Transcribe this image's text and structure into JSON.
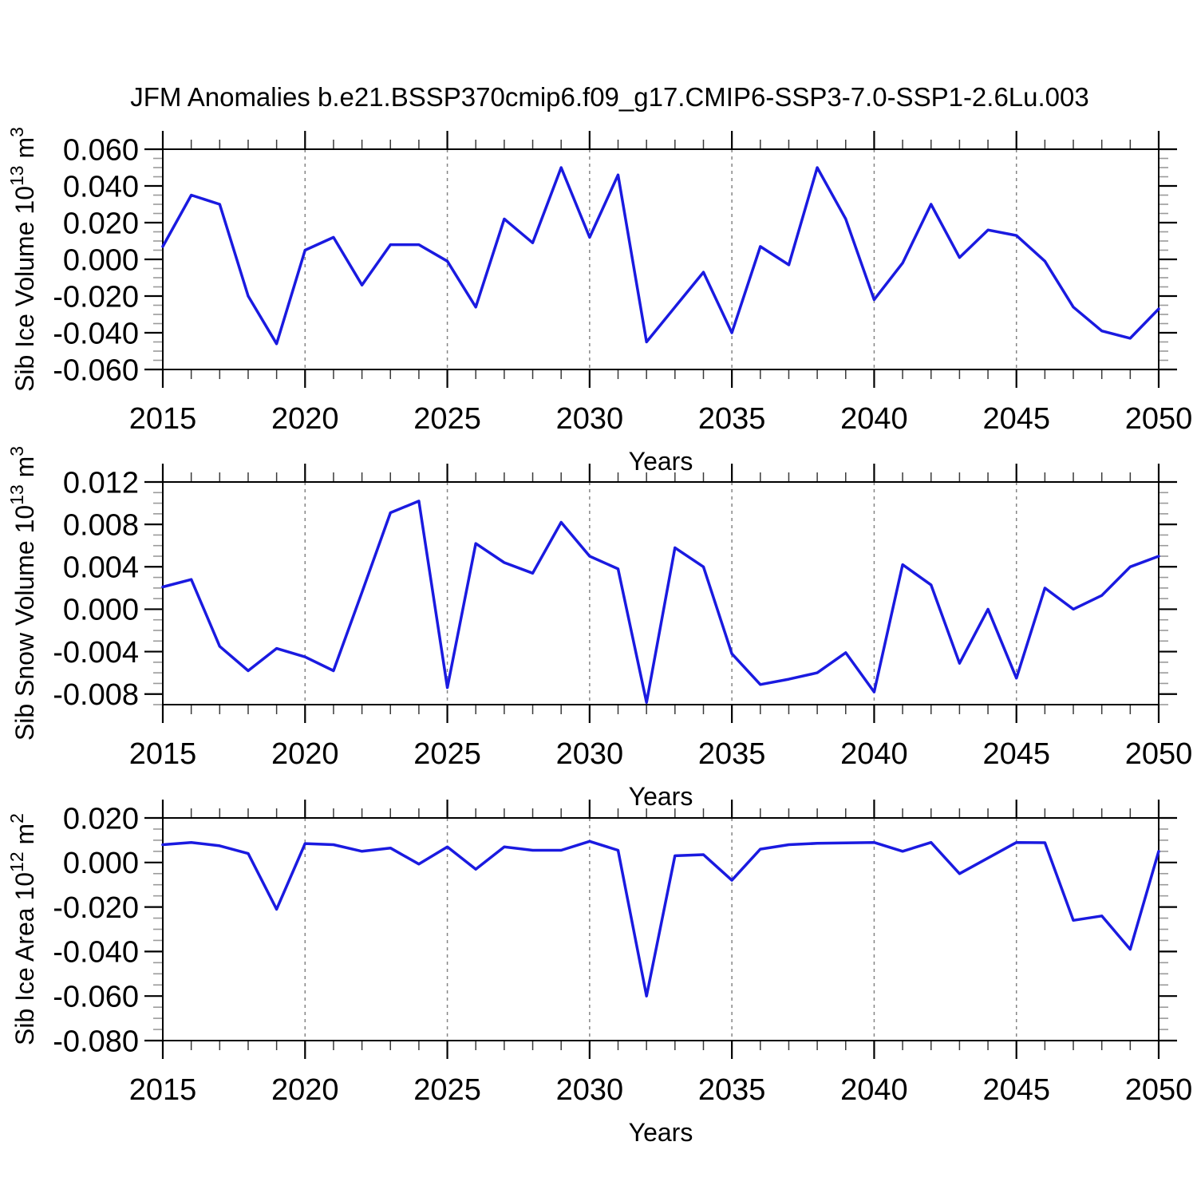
{
  "title": "JFM Anomalies b.e21.BSSP370cmip6.f09_g17.CMIP6-SSP3-7.0-SSP1-2.6Lu.003",
  "chart_data": {
    "type": "line",
    "title": "JFM Anomalies b.e21.BSSP370cmip6.f09_g17.CMIP6-SSP3-7.0-SSP1-2.6Lu.003",
    "xlabel": "Years",
    "line_color": "#1a1ae0",
    "grid": "dashed-vertical-at-major-years",
    "x": [
      2015,
      2016,
      2017,
      2018,
      2019,
      2020,
      2021,
      2022,
      2023,
      2024,
      2025,
      2026,
      2027,
      2028,
      2029,
      2030,
      2031,
      2032,
      2033,
      2034,
      2035,
      2036,
      2037,
      2038,
      2039,
      2040,
      2041,
      2042,
      2043,
      2044,
      2045,
      2046,
      2047,
      2048,
      2049,
      2050
    ],
    "x_major_ticks": [
      2015,
      2020,
      2025,
      2030,
      2035,
      2040,
      2045,
      2050
    ],
    "x_tick_labels": [
      "2015",
      "2020",
      "2025",
      "2030",
      "2035",
      "2040",
      "2045",
      "2050"
    ],
    "grid_years": [
      2020,
      2025,
      2030,
      2035,
      2040,
      2045
    ],
    "panels": [
      {
        "name": "sib-ice-volume",
        "ylabel_parts": [
          "Sib Ice Volume 10",
          {
            "sup": "13"
          },
          " m",
          {
            "sup": "3"
          }
        ],
        "ylim": [
          -0.06,
          0.06
        ],
        "ytick_values": [
          0.06,
          0.04,
          0.02,
          0.0,
          -0.02,
          -0.04,
          -0.06
        ],
        "ytick_labels": [
          "0.060",
          "0.040",
          "0.020",
          "0.000",
          "-0.020",
          "-0.040",
          "-0.060"
        ],
        "y_minor_step": 0.005,
        "values": [
          0.007,
          0.035,
          0.03,
          -0.02,
          -0.046,
          0.005,
          0.012,
          -0.014,
          0.008,
          0.008,
          -0.001,
          -0.026,
          0.022,
          0.009,
          0.05,
          0.012,
          0.046,
          -0.045,
          -0.026,
          -0.007,
          -0.04,
          0.007,
          -0.003,
          0.05,
          0.022,
          -0.022,
          -0.002,
          0.03,
          0.001,
          0.016,
          0.013,
          -0.001,
          -0.026,
          -0.039,
          -0.043,
          -0.027
        ]
      },
      {
        "name": "sib-snow-volume",
        "ylabel_parts": [
          "Sib Snow Volume 10",
          {
            "sup": "13"
          },
          " m",
          {
            "sup": "3"
          }
        ],
        "ylim": [
          -0.009,
          0.012
        ],
        "ytick_values": [
          0.012,
          0.008,
          0.004,
          0.0,
          -0.004,
          -0.008
        ],
        "ytick_labels": [
          "0.012",
          "0.008",
          "0.004",
          "0.000",
          "-0.004",
          "-0.008"
        ],
        "y_minor_step": 0.001,
        "values": [
          0.0021,
          0.0028,
          -0.0035,
          -0.0058,
          -0.0037,
          -0.0045,
          -0.0058,
          0.0016,
          0.0091,
          0.0102,
          -0.0074,
          0.0062,
          0.0044,
          0.0034,
          0.0082,
          0.005,
          0.0038,
          -0.0088,
          0.0058,
          0.004,
          -0.0042,
          -0.0071,
          -0.0066,
          -0.006,
          -0.0041,
          -0.0078,
          0.0042,
          0.0023,
          -0.0051,
          0.0,
          -0.0065,
          0.002,
          0.0,
          0.0013,
          0.004,
          0.005
        ]
      },
      {
        "name": "sib-ice-area",
        "ylabel_parts": [
          "Sib Ice Area 10",
          {
            "sup": "12"
          },
          " m",
          {
            "sup": "2"
          }
        ],
        "ylim": [
          -0.08,
          0.02
        ],
        "ytick_values": [
          0.02,
          0.0,
          -0.02,
          -0.04,
          -0.06,
          -0.08
        ],
        "ytick_labels": [
          "0.020",
          "0.000",
          "-0.020",
          "-0.040",
          "-0.060",
          "-0.080"
        ],
        "y_minor_step": 0.005,
        "values": [
          0.008,
          0.009,
          0.0075,
          0.004,
          -0.021,
          0.0085,
          0.008,
          0.005,
          0.0065,
          -0.0007,
          0.007,
          -0.003,
          0.007,
          0.0055,
          0.0055,
          0.0095,
          0.0055,
          -0.06,
          0.003,
          0.0035,
          -0.008,
          0.006,
          0.008,
          0.0086,
          0.0088,
          0.009,
          0.005,
          0.009,
          -0.005,
          0.002,
          0.009,
          0.0089,
          -0.026,
          -0.024,
          -0.039,
          0.005
        ]
      }
    ]
  }
}
